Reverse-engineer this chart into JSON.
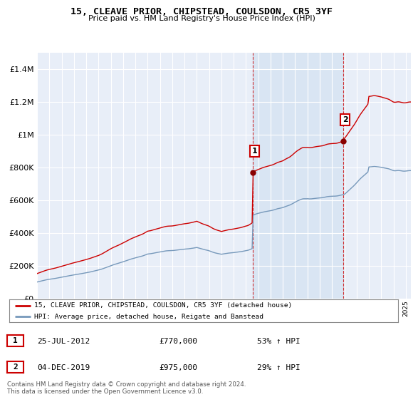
{
  "title": "15, CLEAVE PRIOR, CHIPSTEAD, COULSDON, CR5 3YF",
  "subtitle": "Price paid vs. HM Land Registry's House Price Index (HPI)",
  "ylim": [
    0,
    1500000
  ],
  "yticks": [
    0,
    200000,
    400000,
    600000,
    800000,
    1000000,
    1200000,
    1400000
  ],
  "ytick_labels": [
    "£0",
    "£200K",
    "£400K",
    "£600K",
    "£800K",
    "£1M",
    "£1.2M",
    "£1.4M"
  ],
  "background_color": "#ffffff",
  "plot_bg_color": "#e8eef8",
  "grid_color": "#ffffff",
  "purchase1": {
    "year": 2012,
    "month": 7,
    "day": 25,
    "price": 770000,
    "label": "1",
    "pct": "53% ↑ HPI",
    "date_str": "25-JUL-2012"
  },
  "purchase2": {
    "year": 2019,
    "month": 12,
    "day": 4,
    "price": 975000,
    "label": "2",
    "pct": "29% ↑ HPI",
    "date_str": "04-DEC-2019"
  },
  "legend_label_red": "15, CLEAVE PRIOR, CHIPSTEAD, COULSDON, CR5 3YF (detached house)",
  "legend_label_blue": "HPI: Average price, detached house, Reigate and Banstead",
  "footer": "Contains HM Land Registry data © Crown copyright and database right 2024.\nThis data is licensed under the Open Government Licence v3.0.",
  "red_color": "#cc0000",
  "blue_color": "#7799bb",
  "shade_color": "#d0dff0",
  "annotation_box_color": "#cc0000",
  "vline_color": "#cc0000"
}
